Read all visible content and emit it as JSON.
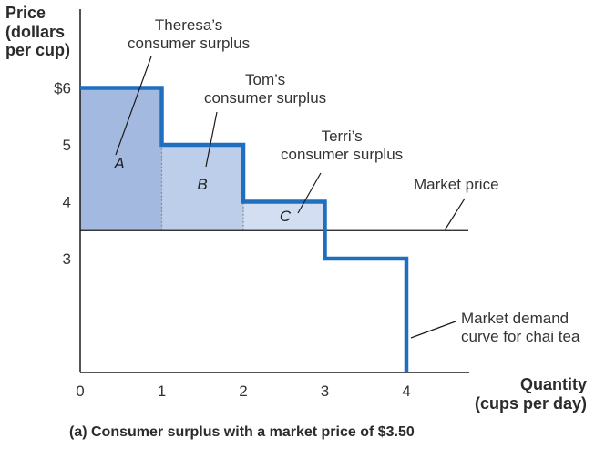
{
  "chart_data": {
    "type": "line",
    "title": "",
    "xlabel": "Quantity\n(cups per day)",
    "ylabel": "Price\n(dollars\nper cup)",
    "caption": "(a) Consumer surplus with a market price of $3.50",
    "xlim": [
      0,
      4.7
    ],
    "ylim": [
      0,
      6
    ],
    "x_ticks": [
      {
        "value": 0,
        "label": "0"
      },
      {
        "value": 1,
        "label": "1"
      },
      {
        "value": 2,
        "label": "2"
      },
      {
        "value": 3,
        "label": "3"
      },
      {
        "value": 4,
        "label": "4"
      }
    ],
    "y_ticks": [
      {
        "value": 3,
        "label": "3"
      },
      {
        "value": 4,
        "label": "4"
      },
      {
        "value": 5,
        "label": "5"
      },
      {
        "value": 6,
        "label": "$6"
      }
    ],
    "market_price": 3.5,
    "series": [
      {
        "name": "Market demand curve for chai tea",
        "color": "#1f6fbf",
        "points": [
          [
            0,
            6
          ],
          [
            1,
            6
          ],
          [
            1,
            5
          ],
          [
            2,
            5
          ],
          [
            2,
            4
          ],
          [
            3,
            4
          ],
          [
            3,
            3
          ],
          [
            4,
            3
          ],
          [
            4,
            0
          ]
        ]
      },
      {
        "name": "Market price",
        "color": "#1a1a1a",
        "points": [
          [
            0,
            3.5
          ],
          [
            4.7,
            3.5
          ]
        ]
      }
    ],
    "regions": [
      {
        "label": "A",
        "x0": 0,
        "x1": 1,
        "y0": 3.5,
        "y1": 6,
        "color": "#a3b9df"
      },
      {
        "label": "B",
        "x0": 1,
        "x1": 2,
        "y0": 3.5,
        "y1": 5,
        "color": "#bccee9"
      },
      {
        "label": "C",
        "x0": 2,
        "x1": 3,
        "y0": 3.5,
        "y1": 4,
        "color": "#d3def3"
      }
    ],
    "annotations": [
      {
        "text": "Theresa’s\nconsumer surplus",
        "target": "A"
      },
      {
        "text": "Tom’s\nconsumer surplus",
        "target": "B"
      },
      {
        "text": "Terri’s\nconsumer surplus",
        "target": "C"
      },
      {
        "text": "Market price",
        "target": "market-price-line"
      },
      {
        "text": "Market demand\ncurve for chai tea",
        "target": "demand-curve"
      }
    ]
  }
}
